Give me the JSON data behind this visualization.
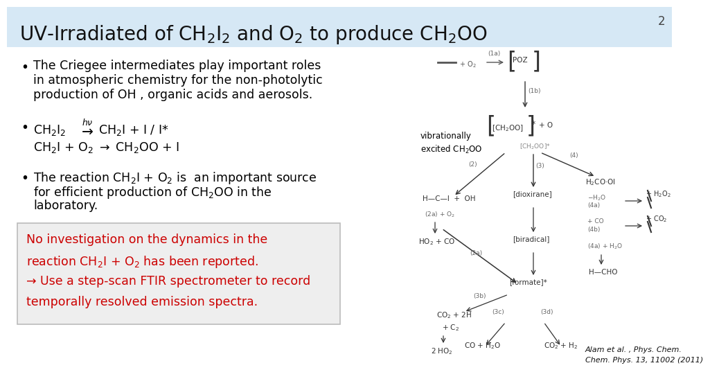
{
  "bg_color": "#ffffff",
  "header_color": "#d6e8f5",
  "title_fontsize": 20,
  "slide_number": "2",
  "bullet_fontsize": 12.5,
  "red_color": "#cc0000",
  "red_box_bg": "#eeeeee",
  "bullet1_line1": "The Criegee intermediates play important roles",
  "bullet1_line2": "in atmospheric chemistry for the non-photolytic",
  "bullet1_line3": "production of OH , organic acids and aerosols.",
  "bullet3_line1": "The reaction CH$_2$I + O$_2$ is  an important source",
  "bullet3_line2": "for efficient production of CH$_2$OO in the",
  "bullet3_line3": "laboratory.",
  "red_line1": "No investigation on the dynamics in the",
  "red_line2": "reaction CH$_2$I + O$_2$ has been reported.",
  "red_line3": "→ Use a step-scan FTIR spectrometer to record",
  "red_line4": "temporally resolved emission spectra.",
  "vibrationally_text": "vibrationally\nexcited CH$_2$OO",
  "citation_line1": "Alam et al. , Phys. Chem.",
  "citation_line2": "Chem. Phys. 13, 11002 (2011)"
}
